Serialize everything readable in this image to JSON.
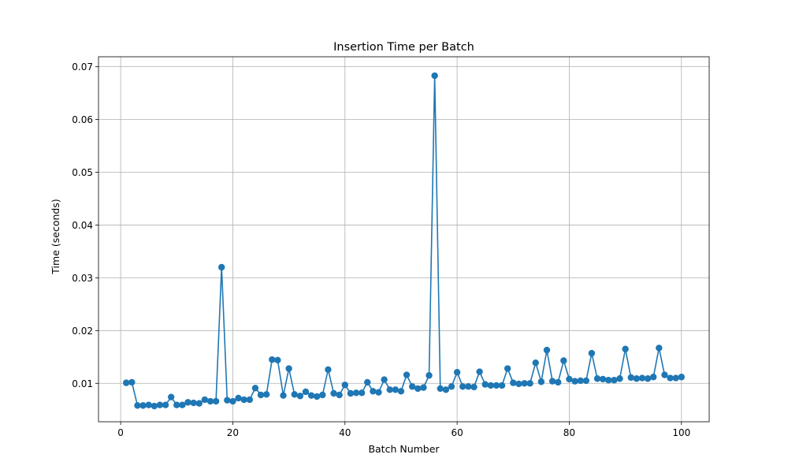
{
  "chart_data": {
    "type": "line",
    "title": "Insertion Time per Batch",
    "xlabel": "Batch Number",
    "ylabel": "Time (seconds)",
    "xlim": [
      -3.95,
      104.95
    ],
    "ylim": [
      0.00272,
      0.07189
    ],
    "grid": true,
    "line_color": "#1f77b4",
    "x_ticks": [
      {
        "value": 0,
        "label": "0"
      },
      {
        "value": 20,
        "label": "20"
      },
      {
        "value": 40,
        "label": "40"
      },
      {
        "value": 60,
        "label": "60"
      },
      {
        "value": 80,
        "label": "80"
      },
      {
        "value": 100,
        "label": "100"
      }
    ],
    "y_ticks": [
      {
        "value": 0.01,
        "label": "0.01"
      },
      {
        "value": 0.02,
        "label": "0.02"
      },
      {
        "value": 0.03,
        "label": "0.03"
      },
      {
        "value": 0.04,
        "label": "0.04"
      },
      {
        "value": 0.05,
        "label": "0.05"
      },
      {
        "value": 0.06,
        "label": "0.06"
      },
      {
        "value": 0.07,
        "label": "0.07"
      }
    ],
    "series": [
      {
        "x": [
          1,
          2,
          3,
          4,
          5,
          6,
          7,
          8,
          9,
          10,
          11,
          12,
          13,
          14,
          15,
          16,
          17,
          18,
          19,
          20,
          21,
          22,
          23,
          24,
          25,
          26,
          27,
          28,
          29,
          30,
          31,
          32,
          33,
          34,
          35,
          36,
          37,
          38,
          39,
          40,
          41,
          42,
          43,
          44,
          45,
          46,
          47,
          48,
          49,
          50,
          51,
          52,
          53,
          54,
          55,
          56,
          57,
          58,
          59,
          60,
          61,
          62,
          63,
          64,
          65,
          66,
          67,
          68,
          69,
          70,
          71,
          72,
          73,
          74,
          75,
          76,
          77,
          78,
          79,
          80,
          81,
          82,
          83,
          84,
          85,
          86,
          87,
          88,
          89,
          90,
          91,
          92,
          93,
          94,
          95,
          96,
          97,
          98,
          99,
          100
        ],
        "values": [
          0.0101,
          0.0102,
          0.0058,
          0.0058,
          0.0059,
          0.0057,
          0.0059,
          0.0059,
          0.0074,
          0.0059,
          0.0059,
          0.0064,
          0.0063,
          0.0062,
          0.0069,
          0.0066,
          0.0066,
          0.032,
          0.0068,
          0.0066,
          0.0072,
          0.0069,
          0.0069,
          0.0091,
          0.0078,
          0.0079,
          0.0145,
          0.0144,
          0.0077,
          0.0128,
          0.0079,
          0.0076,
          0.0084,
          0.0077,
          0.0075,
          0.0078,
          0.0126,
          0.0081,
          0.0078,
          0.0097,
          0.0081,
          0.0082,
          0.0082,
          0.0102,
          0.0085,
          0.0083,
          0.0107,
          0.0088,
          0.0088,
          0.0085,
          0.0116,
          0.0094,
          0.009,
          0.0092,
          0.0115,
          0.0683,
          0.009,
          0.0088,
          0.0094,
          0.0121,
          0.0094,
          0.0094,
          0.0093,
          0.0122,
          0.0098,
          0.0096,
          0.0096,
          0.0096,
          0.0128,
          0.0101,
          0.0099,
          0.01,
          0.01,
          0.0139,
          0.0103,
          0.0163,
          0.0104,
          0.0102,
          0.0143,
          0.0108,
          0.0104,
          0.0105,
          0.0105,
          0.0157,
          0.0109,
          0.0108,
          0.0106,
          0.0106,
          0.0109,
          0.0165,
          0.0111,
          0.0109,
          0.011,
          0.0109,
          0.0112,
          0.0167,
          0.0116,
          0.011,
          0.011,
          0.0112
        ]
      }
    ]
  }
}
